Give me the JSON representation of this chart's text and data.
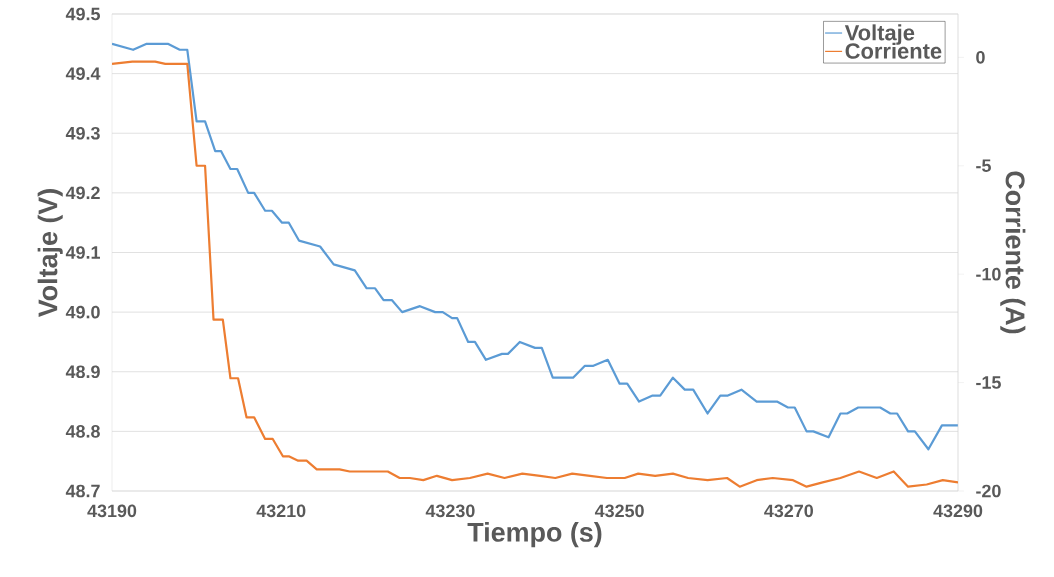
{
  "chart_data": {
    "type": "line",
    "xlabel": "Tiempo (s)",
    "ylabel": "Voltaje (V)",
    "y2label": "Corriente (A)",
    "xlim": [
      43190,
      43290
    ],
    "xticks": [
      43190,
      43210,
      43230,
      43250,
      43270,
      43290
    ],
    "ylim": [
      48.7,
      49.5
    ],
    "yticks": [
      {
        "value": 48.7,
        "label": "48.7"
      },
      {
        "value": 48.8,
        "label": "48.8"
      },
      {
        "value": 48.9,
        "label": "48.9"
      },
      {
        "value": 49.0,
        "label": "49.0"
      },
      {
        "value": 49.1,
        "label": "49.1"
      },
      {
        "value": 49.2,
        "label": "49.2"
      },
      {
        "value": 49.3,
        "label": "49.3"
      },
      {
        "value": 49.4,
        "label": "49.4"
      },
      {
        "value": 49.5,
        "label": "49.5"
      }
    ],
    "y2lim": [
      -20,
      2
    ],
    "y2ticks": [
      -20,
      -15,
      -10,
      -5,
      0
    ],
    "grid": "y",
    "legend": "top right",
    "marker": "none",
    "line_style": "solid",
    "series": [
      {
        "name": "Voltaje",
        "color": "#5b9bd5",
        "x": [
          43190,
          43192.5,
          43194.1,
          43196.6,
          43198,
          43198.9,
          43200,
          43201,
          43202.2,
          43202.9,
          43204,
          43204.8,
          43206.1,
          43206.8,
          43208.1,
          43208.9,
          43210.1,
          43210.9,
          43212.1,
          43214.6,
          43216.2,
          43218.7,
          43220.1,
          43221.1,
          43222.1,
          43223.1,
          43224.3,
          43226.4,
          43228.2,
          43229.1,
          43230.2,
          43230.8,
          43232.1,
          43232.9,
          43234.2,
          43236.1,
          43236.8,
          43238.2,
          43240,
          43240.8,
          43242.1,
          43244.5,
          43245.9,
          43246.9,
          43248.6,
          43250,
          43250.9,
          43252.3,
          43253.9,
          43254.8,
          43256.3,
          43257.7,
          43258.7,
          43260.4,
          43261.9,
          43262.8,
          43264.4,
          43266.2,
          43268.6,
          43269.9,
          43270.7,
          43272.1,
          43272.9,
          43274.7,
          43276.1,
          43276.9,
          43278.2,
          43280.8,
          43282,
          43282.8,
          43284.1,
          43284.9,
          43286.5,
          43288.1,
          43290
        ],
        "values": [
          49.45,
          49.44,
          49.45,
          49.45,
          49.44,
          49.44,
          49.32,
          49.32,
          49.27,
          49.27,
          49.24,
          49.24,
          49.2,
          49.2,
          49.17,
          49.17,
          49.15,
          49.15,
          49.12,
          49.11,
          49.08,
          49.07,
          49.04,
          49.04,
          49.02,
          49.02,
          49.0,
          49.01,
          49.0,
          49.0,
          48.99,
          48.99,
          48.95,
          48.95,
          48.92,
          48.93,
          48.93,
          48.95,
          48.94,
          48.94,
          48.89,
          48.89,
          48.91,
          48.91,
          48.92,
          48.88,
          48.88,
          48.85,
          48.86,
          48.86,
          48.89,
          48.87,
          48.87,
          48.83,
          48.86,
          48.86,
          48.87,
          48.85,
          48.85,
          48.84,
          48.84,
          48.8,
          48.8,
          48.79,
          48.83,
          48.83,
          48.84,
          48.84,
          48.83,
          48.83,
          48.8,
          48.8,
          48.77,
          48.81,
          48.81
        ]
      },
      {
        "name": "Corriente",
        "color": "#ed7d31",
        "axis": "y2",
        "x": [
          43190,
          43192.4,
          43195.1,
          43196.3,
          43198.3,
          43198.9,
          43200,
          43201,
          43202,
          43203.1,
          43204,
          43204.9,
          43205.9,
          43206.8,
          43208.1,
          43209,
          43210.2,
          43210.9,
          43212,
          43213,
          43214.2,
          43216.9,
          43218.1,
          43222.6,
          43224,
          43225.2,
          43226.8,
          43228.4,
          43230.2,
          43232.3,
          43234.4,
          43236.4,
          43238.5,
          43240.6,
          43242.4,
          43244.4,
          43246.5,
          43248.5,
          43250.6,
          43252.2,
          43254.2,
          43256.3,
          43258.1,
          43260.4,
          43262.7,
          43264.2,
          43266.2,
          43268.1,
          43270.5,
          43272.1,
          43274,
          43276.1,
          43278.3,
          43280.4,
          43282.4,
          43284.1,
          43286.3,
          43288.2,
          43290
        ],
        "values": [
          -0.3,
          -0.2,
          -0.2,
          -0.3,
          -0.3,
          -0.3,
          -5.0,
          -5.0,
          -12.1,
          -12.1,
          -14.8,
          -14.8,
          -16.6,
          -16.6,
          -17.6,
          -17.6,
          -18.4,
          -18.4,
          -18.6,
          -18.6,
          -19.0,
          -19.0,
          -19.1,
          -19.1,
          -19.4,
          -19.4,
          -19.5,
          -19.3,
          -19.5,
          -19.4,
          -19.2,
          -19.4,
          -19.2,
          -19.3,
          -19.4,
          -19.2,
          -19.3,
          -19.4,
          -19.4,
          -19.2,
          -19.3,
          -19.2,
          -19.4,
          -19.5,
          -19.4,
          -19.8,
          -19.5,
          -19.4,
          -19.5,
          -19.8,
          -19.6,
          -19.4,
          -19.1,
          -19.4,
          -19.1,
          -19.8,
          -19.7,
          -19.5,
          -19.6
        ]
      }
    ]
  }
}
